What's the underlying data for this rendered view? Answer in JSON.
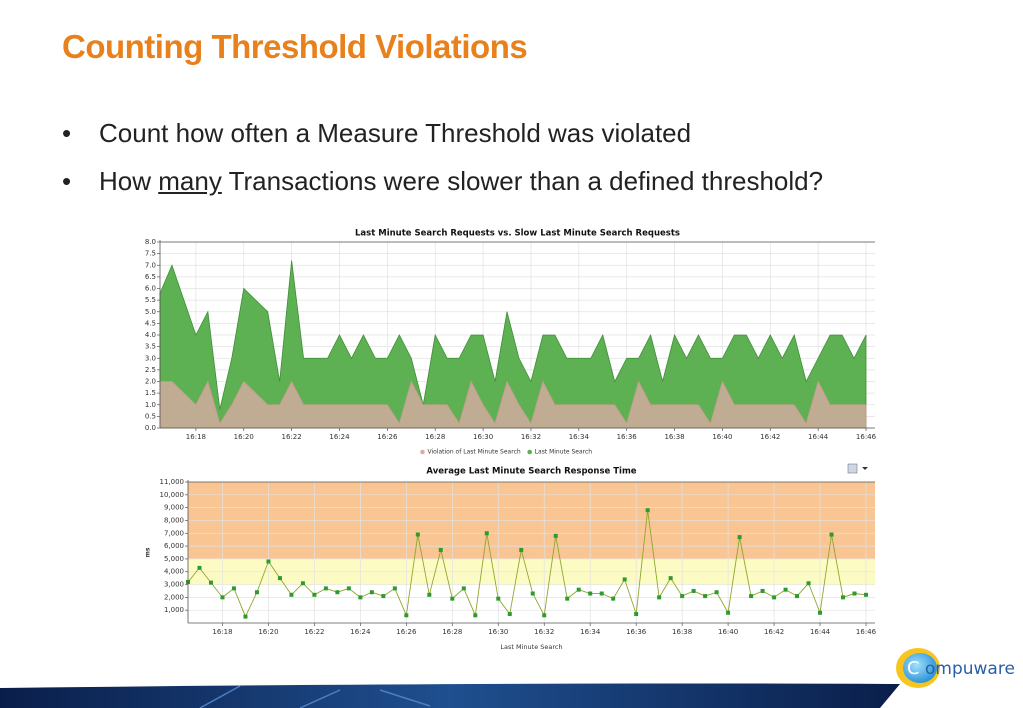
{
  "slide": {
    "title": "Counting Threshold Violations",
    "bullets": [
      {
        "before": "Count how often a Measure Threshold was violated"
      },
      {
        "before": "How ",
        "underlined": "many",
        "after": " Transactions were slower than a defined threshold?"
      }
    ],
    "logo": {
      "mark": "C",
      "text": "ompuware"
    }
  },
  "chart_data": [
    {
      "type": "area",
      "title": "Last Minute Search Requests vs. Slow Last Minute Search Requests",
      "categories": [
        null,
        null,
        null,
        "16:18",
        null,
        null,
        null,
        "16:20",
        null,
        null,
        null,
        "16:22",
        null,
        null,
        null,
        "16:24",
        null,
        null,
        null,
        "16:26",
        null,
        null,
        null,
        "16:28",
        null,
        null,
        null,
        "16:30",
        null,
        null,
        null,
        "16:32",
        null,
        null,
        null,
        "16:34",
        null,
        null,
        null,
        "16:36",
        null,
        null,
        null,
        "16:38",
        null,
        null,
        null,
        "16:40",
        null,
        null,
        null,
        "16:42",
        null,
        null,
        null,
        "16:44",
        null,
        null,
        null,
        "16:46"
      ],
      "series": [
        {
          "name": "Last Minute Search",
          "color": "#5db152",
          "values": [
            5.8,
            7,
            5.5,
            4,
            5,
            0.8,
            3,
            6,
            5.5,
            5,
            2,
            7.2,
            3,
            3,
            3,
            4,
            3,
            4,
            3,
            3,
            4,
            3,
            1,
            4,
            3,
            3,
            4,
            4,
            2,
            5,
            3,
            2,
            4,
            4,
            3,
            3,
            3,
            4,
            2,
            3,
            3,
            4,
            2,
            4,
            3,
            4,
            3,
            3,
            4,
            4,
            3,
            4,
            3,
            4,
            2,
            3,
            4,
            4,
            3,
            4
          ]
        },
        {
          "name": "Violation of Last Minute Search",
          "color": "#e2a9a9",
          "values": [
            2,
            2,
            1.5,
            1,
            2,
            0.2,
            1,
            2,
            1.5,
            1,
            1,
            2,
            1,
            1,
            1,
            1,
            1,
            1,
            1,
            1,
            0.2,
            2,
            1,
            1,
            1,
            0.2,
            2,
            1,
            0.2,
            2,
            1,
            0.2,
            2,
            1,
            1,
            1,
            1,
            1,
            1,
            0.2,
            2,
            1,
            1,
            1,
            1,
            1,
            0.2,
            2,
            1,
            1,
            1,
            1,
            1,
            1,
            0.2,
            2,
            1,
            1,
            1,
            1
          ]
        }
      ],
      "ylim": [
        0,
        8
      ],
      "yticks": [
        {
          "value": 0,
          "label": "0.0"
        },
        0.5,
        {
          "value": 1,
          "label": "1.0"
        },
        1.5,
        {
          "value": 2,
          "label": "2.0"
        },
        2.5,
        {
          "value": 3,
          "label": "3.0"
        },
        3.5,
        {
          "value": 4,
          "label": "4.0"
        },
        4.5,
        {
          "value": 5,
          "label": "5.0"
        },
        5.5,
        {
          "value": 6,
          "label": "6.0"
        },
        6.5,
        {
          "value": 7,
          "label": "7.0"
        },
        7.5,
        {
          "value": 8,
          "label": "8.0"
        }
      ],
      "grid": true,
      "legend": "bottom"
    },
    {
      "type": "line",
      "title": "Average Last Minute Search Response Time",
      "ylabel": "ms",
      "xlabel": "Last Minute Search",
      "categories": [
        null,
        null,
        null,
        "16:18",
        null,
        null,
        null,
        "16:20",
        null,
        null,
        null,
        "16:22",
        null,
        null,
        null,
        "16:24",
        null,
        null,
        null,
        "16:26",
        null,
        null,
        null,
        "16:28",
        null,
        null,
        null,
        "16:30",
        null,
        null,
        null,
        "16:32",
        null,
        null,
        null,
        "16:34",
        null,
        null,
        null,
        "16:36",
        null,
        null,
        null,
        "16:38",
        null,
        null,
        null,
        "16:40",
        null,
        null,
        null,
        "16:42",
        null,
        null,
        null,
        "16:44",
        null,
        null,
        null,
        "16:46"
      ],
      "series": [
        {
          "name": "Average Last Minute Search Response Time",
          "color": "#8da82c",
          "marker_color": "#2f9a2f",
          "values": [
            3200,
            4300,
            3150,
            2000,
            2700,
            500,
            2400,
            4800,
            3500,
            2200,
            3100,
            2200,
            2700,
            2400,
            2700,
            2000,
            2400,
            2100,
            2700,
            600,
            6900,
            2200,
            5700,
            1900,
            2700,
            600,
            7000,
            1900,
            700,
            5700,
            2300,
            600,
            6800,
            1900,
            2600,
            2300,
            2300,
            1900,
            3400,
            700,
            8800,
            2000,
            3500,
            2100,
            2500,
            2100,
            2400,
            800,
            6700,
            2100,
            2500,
            2000,
            2600,
            2100,
            3100,
            800,
            6900,
            2000,
            2300,
            2200
          ]
        }
      ],
      "ylim": [
        0,
        11000
      ],
      "yticks": [
        {
          "value": 1000,
          "label": "1,000"
        },
        {
          "value": 2000,
          "label": "2,000"
        },
        {
          "value": 3000,
          "label": "3,000"
        },
        {
          "value": 4000,
          "label": "4,000"
        },
        {
          "value": 5000,
          "label": "5,000"
        },
        {
          "value": 6000,
          "label": "6,000"
        },
        {
          "value": 7000,
          "label": "7,000"
        },
        {
          "value": 8000,
          "label": "8,000"
        },
        {
          "value": 9000,
          "label": "9,000"
        },
        {
          "value": 10000,
          "label": "10,000"
        },
        {
          "value": 11000,
          "label": "11,000"
        }
      ],
      "bands": [
        {
          "from": 3000,
          "to": 5000,
          "color": "#fdfbc4"
        },
        {
          "from": 5000,
          "to": 11000,
          "color": "#f9c592"
        }
      ],
      "grid": true
    }
  ]
}
